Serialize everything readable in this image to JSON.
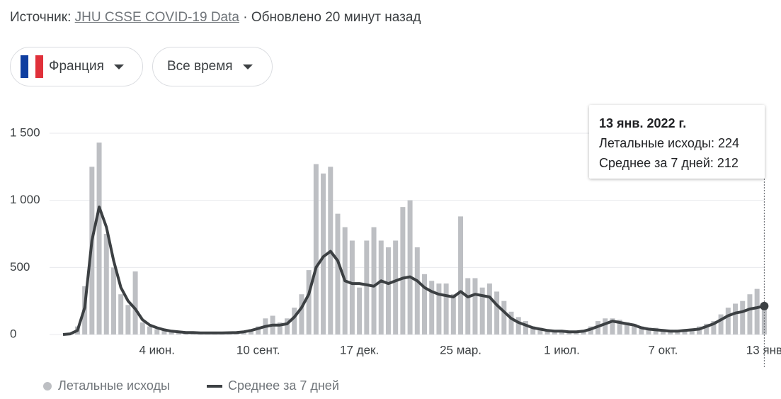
{
  "header": {
    "source_label": "Источник:",
    "source_link": "JHU CSSE COVID-19 Data",
    "updated": "· Обновлено 20 минут назад"
  },
  "controls": {
    "country": "Франция",
    "period": "Все время"
  },
  "chart_data": {
    "type": "bar",
    "categories": [
      null,
      null,
      null,
      null,
      null,
      null,
      null,
      null,
      null,
      null,
      null,
      null,
      null,
      "4 июн.",
      null,
      null,
      null,
      null,
      null,
      null,
      null,
      null,
      null,
      null,
      null,
      null,
      null,
      "10 сент.",
      null,
      null,
      null,
      null,
      null,
      null,
      null,
      null,
      null,
      null,
      null,
      null,
      null,
      "17 дек.",
      null,
      null,
      null,
      null,
      null,
      null,
      null,
      null,
      null,
      null,
      null,
      null,
      null,
      "25 мар.",
      null,
      null,
      null,
      null,
      null,
      null,
      null,
      null,
      null,
      null,
      null,
      null,
      null,
      "1 июл.",
      null,
      null,
      null,
      null,
      null,
      null,
      null,
      null,
      null,
      null,
      null,
      null,
      null,
      "7 окт.",
      null,
      null,
      null,
      null,
      null,
      null,
      null,
      null,
      null,
      null,
      null,
      null,
      null,
      "13 янв"
    ],
    "series": [
      {
        "name": "Летальные исходы",
        "type": "bar",
        "color": "#bdbfc3",
        "values": [
          0,
          10,
          60,
          360,
          1250,
          1430,
          750,
          500,
          300,
          220,
          470,
          90,
          60,
          40,
          30,
          25,
          20,
          15,
          20,
          15,
          15,
          15,
          15,
          20,
          20,
          25,
          40,
          60,
          120,
          140,
          90,
          120,
          200,
          300,
          480,
          1270,
          1200,
          1250,
          900,
          800,
          700,
          350,
          700,
          800,
          700,
          650,
          700,
          950,
          1000,
          650,
          450,
          400,
          380,
          380,
          300,
          880,
          420,
          420,
          350,
          380,
          320,
          250,
          170,
          130,
          100,
          60,
          50,
          35,
          30,
          30,
          25,
          25,
          35,
          60,
          100,
          120,
          120,
          110,
          90,
          80,
          60,
          50,
          50,
          40,
          35,
          35,
          40,
          45,
          60,
          80,
          100,
          150,
          200,
          230,
          250,
          300,
          340,
          224
        ]
      },
      {
        "name": "Среднее за 7 дней",
        "type": "line",
        "color": "#3c4043",
        "values": [
          0,
          5,
          30,
          200,
          700,
          950,
          800,
          550,
          350,
          250,
          190,
          110,
          70,
          50,
          35,
          25,
          20,
          15,
          15,
          12,
          12,
          12,
          12,
          13,
          15,
          20,
          30,
          45,
          60,
          70,
          70,
          80,
          130,
          200,
          300,
          500,
          580,
          620,
          550,
          400,
          380,
          380,
          370,
          360,
          400,
          380,
          400,
          420,
          430,
          400,
          350,
          320,
          300,
          290,
          280,
          320,
          280,
          300,
          290,
          280,
          220,
          170,
          120,
          90,
          70,
          50,
          40,
          30,
          25,
          25,
          20,
          20,
          25,
          40,
          60,
          80,
          100,
          90,
          80,
          70,
          50,
          40,
          35,
          30,
          25,
          25,
          30,
          35,
          40,
          60,
          80,
          110,
          140,
          160,
          170,
          190,
          200,
          212
        ]
      }
    ],
    "ylim": [
      0,
      1500
    ],
    "yticks": [
      0,
      500,
      {
        "value": 1000,
        "label": "1 000"
      },
      {
        "value": 1500,
        "label": "1 500"
      }
    ],
    "grid": true,
    "legend": "bottom-left",
    "tooltip": {
      "title": "13 янв. 2022 г.",
      "rows": [
        "Летальные исходы: 224",
        "Среднее за 7 дней: 212"
      ]
    }
  }
}
